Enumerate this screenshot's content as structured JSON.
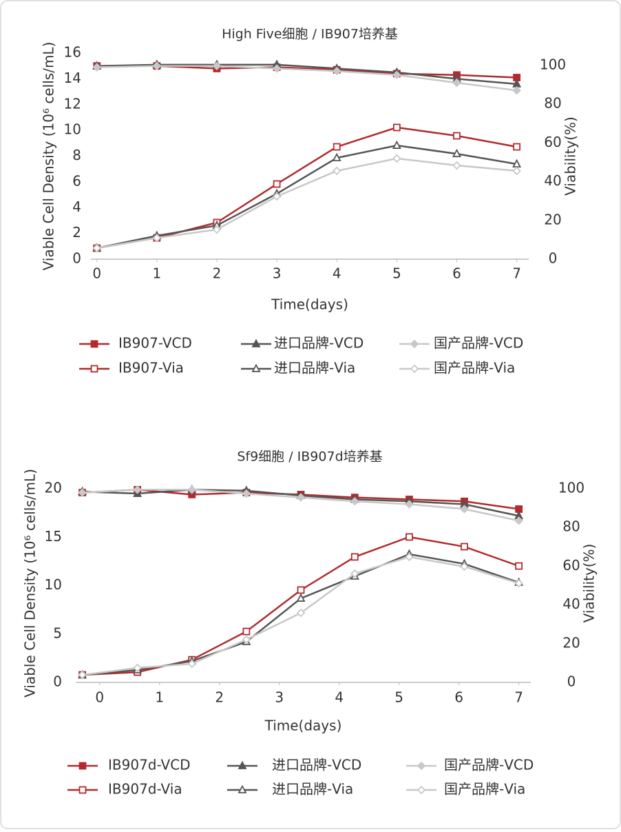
{
  "chart_data": [
    {
      "type": "line",
      "title": "High Five细胞 / IB907培养基",
      "x_label": "Time(days)",
      "y_label": "Viable Cell Density (10⁶ cells/mL)",
      "y2_label": "Viability(%)",
      "x": [
        0,
        1,
        2,
        3,
        4,
        5,
        6,
        7
      ],
      "xlim": [
        -0.1,
        7.2
      ],
      "xticks": [
        0,
        1,
        2,
        3,
        4,
        5,
        6,
        7
      ],
      "ylim": [
        0,
        16
      ],
      "yticks": [
        0,
        2,
        4,
        6,
        8,
        10,
        12,
        14,
        16
      ],
      "y2lim": [
        0,
        106.4
      ],
      "y2ticks": [
        0,
        20,
        40,
        60,
        80,
        100
      ],
      "grid": false,
      "legend": "bottom",
      "series": [
        {
          "name": "IB907-VCD",
          "color": "#b22a2e",
          "marker": "square",
          "filled": true,
          "values": [
            15.0,
            15.0,
            14.8,
            14.9,
            14.7,
            14.4,
            14.3,
            14.1
          ]
        },
        {
          "name": "进口品牌-VCD",
          "color": "#555555",
          "marker": "triangle",
          "filled": true,
          "values": [
            15.0,
            15.1,
            15.1,
            15.1,
            14.8,
            14.5,
            14.0,
            13.6
          ]
        },
        {
          "name": "国产品牌-VCD",
          "color": "#c8c8c8",
          "marker": "diamond",
          "filled": true,
          "values": [
            14.9,
            15.0,
            15.0,
            14.8,
            14.6,
            14.3,
            13.7,
            13.1
          ]
        },
        {
          "name": "IB907-Via",
          "color": "#b22a2e",
          "marker": "square",
          "filled": false,
          "axis": "y2",
          "values": [
            5.7,
            11.0,
            18.9,
            38.8,
            58.0,
            68.0,
            63.7,
            58.0
          ]
        },
        {
          "name": "进口品牌-Via",
          "color": "#555555",
          "marker": "triangle",
          "filled": false,
          "axis": "y2",
          "values": [
            5.7,
            12.1,
            17.4,
            33.8,
            52.3,
            58.7,
            54.4,
            49.1
          ]
        },
        {
          "name": "国产品牌-Via",
          "color": "#c8c8c8",
          "marker": "diamond",
          "filled": false,
          "axis": "y2",
          "values": [
            5.7,
            11.0,
            15.3,
            32.4,
            45.6,
            52.0,
            48.4,
            45.6
          ]
        }
      ]
    },
    {
      "type": "line",
      "title": "Sf9细胞 / IB907d培养基",
      "x_label": "Time(days)",
      "y_label": "Viable Cell Density (10⁶ cells/mL)",
      "y2_label": "Viability(%)",
      "x": [
        -0.29,
        0.63,
        1.54,
        2.45,
        3.36,
        4.26,
        5.17,
        6.09,
        7.0
      ],
      "xlim": [
        -0.4,
        7.2
      ],
      "xticks": [
        0,
        1,
        2,
        3,
        4,
        5,
        6,
        7
      ],
      "ylim": [
        0,
        20.5
      ],
      "yticks": [
        0,
        5,
        10,
        15,
        20
      ],
      "y2lim": [
        0,
        102.5
      ],
      "y2ticks": [
        0,
        20,
        40,
        60,
        80,
        100
      ],
      "grid": false,
      "legend": "bottom",
      "series": [
        {
          "name": "IB907d-VCD",
          "color": "#b22a2e",
          "marker": "square",
          "filled": true,
          "values": [
            19.6,
            19.9,
            19.4,
            19.6,
            19.4,
            19.1,
            18.9,
            18.7,
            17.9
          ]
        },
        {
          "name": "进口品牌-VCD",
          "color": "#555555",
          "marker": "triangle",
          "filled": true,
          "values": [
            19.7,
            19.5,
            19.9,
            19.8,
            19.3,
            18.9,
            18.7,
            18.4,
            17.2
          ]
        },
        {
          "name": "国产品牌-VCD",
          "color": "#c8c8c8",
          "marker": "diamond",
          "filled": true,
          "values": [
            19.6,
            19.9,
            19.9,
            19.5,
            19.1,
            18.7,
            18.4,
            17.9,
            16.7
          ]
        },
        {
          "name": "IB907d-Via",
          "color": "#b22a2e",
          "marker": "square",
          "filled": false,
          "axis": "y2",
          "values": [
            3.9,
            5.3,
            11.7,
            26.3,
            47.7,
            64.8,
            75.1,
            70.1,
            60.1
          ]
        },
        {
          "name": "进口品牌-Via",
          "color": "#555555",
          "marker": "triangle",
          "filled": false,
          "axis": "y2",
          "values": [
            3.9,
            6.4,
            11.0,
            21.0,
            43.4,
            54.8,
            66.2,
            61.2,
            51.6
          ]
        },
        {
          "name": "国产品牌-Via",
          "color": "#c8c8c8",
          "marker": "diamond",
          "filled": false,
          "axis": "y2",
          "values": [
            3.9,
            7.5,
            9.6,
            22.1,
            35.9,
            56.2,
            64.8,
            59.8,
            51.2
          ]
        }
      ]
    }
  ]
}
